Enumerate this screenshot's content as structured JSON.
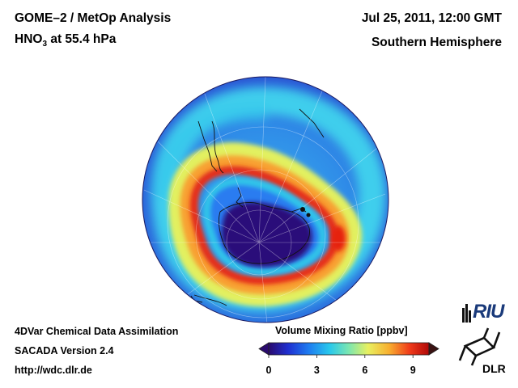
{
  "header": {
    "title_left_line1": "GOME–2 / MetOp Analysis",
    "title_left_line2_species": "HNO",
    "title_left_line2_subscript": "3",
    "title_left_line2_rest": " at 55.4 hPa",
    "title_right_line1": "Jul 25, 2011, 12:00 GMT",
    "title_right_line2": "Southern Hemisphere"
  },
  "footer": {
    "line1": "4DVar Chemical Data Assimilation",
    "line2": "SACADA Version 2.4",
    "line3": "http://wdc.dlr.de"
  },
  "colorbar": {
    "title": "Volume Mixing Ratio [ppbv]",
    "ticks": [
      "0",
      "3",
      "6",
      "9"
    ],
    "tick_values": [
      0,
      3,
      6,
      9
    ],
    "range": [
      0,
      10
    ],
    "colors": [
      "#2a0a6e",
      "#1f2fd0",
      "#1e7cf0",
      "#28c8ec",
      "#7ce6b0",
      "#e8f060",
      "#f8b030",
      "#f03a1a",
      "#b00808"
    ]
  },
  "logos": {
    "riu": "RIU",
    "dlr": "DLR"
  },
  "map": {
    "projection": "orthographic, south polar view",
    "ocean_color": "#3cc0e8",
    "background_color": "#2a7ae8"
  }
}
